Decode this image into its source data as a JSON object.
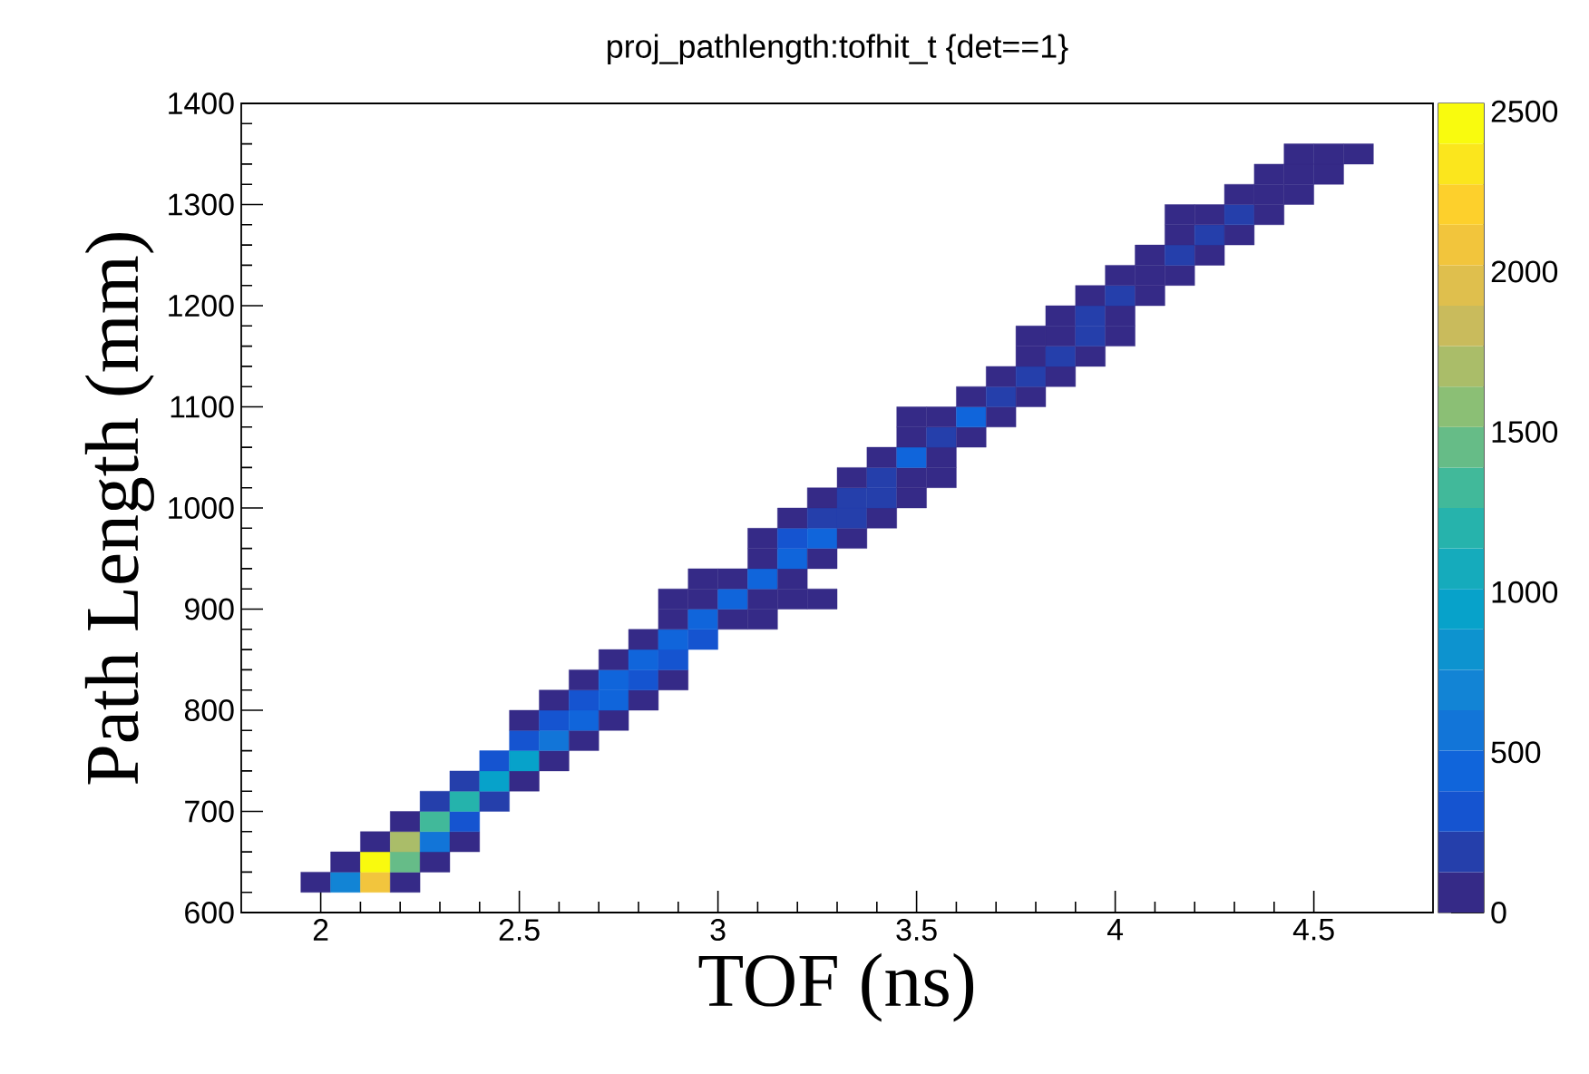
{
  "chart_data": {
    "type": "scatter",
    "title": "proj_pathlength:tofhit_t {det==1}",
    "xlabel": "TOF (ns)",
    "ylabel": "Path Length (mm)",
    "marker": "square",
    "xlim": [
      1.8,
      4.8
    ],
    "ylim": [
      600,
      1400
    ],
    "xticks": [
      2,
      2.5,
      3,
      3.5,
      4,
      4.5
    ],
    "yticks": [
      600,
      700,
      800,
      900,
      1000,
      1100,
      1200,
      1300,
      1400
    ],
    "clim": [
      0,
      2525
    ],
    "cticks": [
      0,
      500,
      1000,
      1500,
      2000,
      2500
    ],
    "x": [
      1.9875,
      2.0625,
      2.1375,
      2.2125,
      2.0625,
      2.1375,
      2.2125,
      2.2875,
      2.1375,
      2.2125,
      2.2875,
      2.3625,
      2.2125,
      2.2875,
      2.3625,
      2.2875,
      2.3625,
      2.4375,
      2.3625,
      2.4375,
      2.5125,
      2.4375,
      2.5125,
      2.5875,
      2.5125,
      2.5875,
      2.6625,
      2.5125,
      2.5875,
      2.6625,
      2.7375,
      2.5875,
      2.6625,
      2.7375,
      2.8125,
      2.6625,
      2.7375,
      2.8125,
      2.8875,
      2.7375,
      2.8125,
      2.8875,
      2.8125,
      2.8875,
      2.9625,
      2.8875,
      2.9625,
      3.0375,
      3.1125,
      2.8875,
      2.9625,
      3.0375,
      3.1125,
      3.1875,
      3.2625,
      2.9625,
      3.0375,
      3.1125,
      3.1875,
      3.1125,
      3.1875,
      3.2625,
      3.1125,
      3.1875,
      3.2625,
      3.3375,
      3.1875,
      3.2625,
      3.3375,
      3.4125,
      3.2625,
      3.3375,
      3.4125,
      3.4875,
      3.3375,
      3.4125,
      3.4875,
      3.5625,
      3.4125,
      3.4875,
      3.5625,
      3.4875,
      3.5625,
      3.6375,
      3.4875,
      3.5625,
      3.6375,
      3.7125,
      3.6375,
      3.7125,
      3.7875,
      3.7125,
      3.7875,
      3.8625,
      3.7875,
      3.8625,
      3.9375,
      3.7875,
      3.8625,
      3.9375,
      4.0125,
      3.8625,
      3.9375,
      4.0125,
      3.9375,
      4.0125,
      4.0875,
      4.0125,
      4.0875,
      4.1625,
      4.0875,
      4.1625,
      4.2375,
      4.1625,
      4.2375,
      4.3125,
      4.1625,
      4.2375,
      4.3125,
      4.3875,
      4.3125,
      4.3875,
      4.4625,
      4.3875,
      4.4625,
      4.5375,
      4.4625,
      4.5375,
      4.6125
    ],
    "values": [
      630,
      630,
      630,
      630,
      650,
      650,
      650,
      650,
      670,
      670,
      670,
      670,
      690,
      690,
      690,
      710,
      710,
      710,
      730,
      730,
      730,
      750,
      750,
      750,
      770,
      770,
      770,
      790,
      790,
      790,
      790,
      810,
      810,
      810,
      810,
      830,
      830,
      830,
      830,
      850,
      850,
      850,
      870,
      870,
      870,
      890,
      890,
      890,
      890,
      910,
      910,
      910,
      910,
      910,
      910,
      930,
      930,
      930,
      930,
      950,
      950,
      950,
      970,
      970,
      970,
      970,
      990,
      990,
      990,
      990,
      1010,
      1010,
      1010,
      1010,
      1030,
      1030,
      1030,
      1030,
      1050,
      1050,
      1050,
      1070,
      1070,
      1070,
      1090,
      1090,
      1090,
      1090,
      1110,
      1110,
      1110,
      1130,
      1130,
      1130,
      1150,
      1150,
      1150,
      1170,
      1170,
      1170,
      1170,
      1190,
      1190,
      1190,
      1210,
      1210,
      1210,
      1230,
      1230,
      1230,
      1250,
      1250,
      1250,
      1270,
      1270,
      1270,
      1290,
      1290,
      1290,
      1290,
      1310,
      1310,
      1310,
      1330,
      1330,
      1330,
      1350,
      1350,
      1350
    ],
    "cvalues": [
      60,
      650,
      2100,
      60,
      60,
      2450,
      1450,
      60,
      60,
      1750,
      600,
      60,
      60,
      1300,
      300,
      250,
      1200,
      250,
      250,
      1000,
      60,
      300,
      900,
      60,
      300,
      600,
      60,
      60,
      350,
      500,
      60,
      60,
      350,
      500,
      60,
      60,
      500,
      350,
      60,
      60,
      500,
      300,
      60,
      450,
      300,
      60,
      450,
      60,
      60,
      60,
      60,
      450,
      60,
      60,
      60,
      60,
      60,
      400,
      60,
      60,
      400,
      60,
      60,
      300,
      400,
      60,
      60,
      250,
      250,
      60,
      60,
      250,
      250,
      60,
      60,
      250,
      60,
      60,
      60,
      400,
      60,
      60,
      250,
      60,
      60,
      60,
      400,
      60,
      60,
      250,
      60,
      60,
      250,
      60,
      60,
      250,
      60,
      60,
      60,
      250,
      60,
      60,
      250,
      60,
      60,
      250,
      60,
      60,
      60,
      60,
      60,
      250,
      60,
      60,
      250,
      60,
      60,
      60,
      250,
      60,
      60,
      60,
      60,
      60,
      60,
      60,
      60,
      60,
      60
    ]
  }
}
